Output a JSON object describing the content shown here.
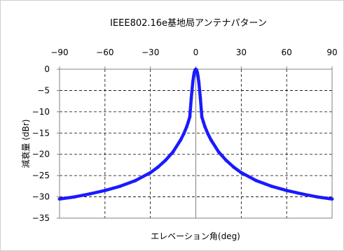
{
  "chart_data": {
    "type": "line",
    "title": "IEEE802.16e基地局アンテナパターン",
    "xlabel": "エレベーション角(deg)",
    "ylabel": "減衰量 (dBr)",
    "xlim": [
      -90,
      90
    ],
    "ylim": [
      -35,
      0
    ],
    "xticks": [
      -90,
      -60,
      -30,
      0,
      30,
      60,
      90
    ],
    "yticks": [
      0,
      -5,
      -10,
      -15,
      -20,
      -25,
      -30,
      -35
    ],
    "x_axis_position": "top",
    "grid": "dashed",
    "series": [
      {
        "color": "#1a1aff",
        "x": [
          -90,
          -80,
          -70,
          -60,
          -50,
          -40,
          -30,
          -25,
          -20,
          -15,
          -10,
          -8,
          -6,
          -5,
          -4,
          -3,
          -2,
          -1.5,
          -1,
          -0.5,
          0,
          0.5,
          1,
          1.5,
          2,
          3,
          4,
          5,
          6,
          8,
          10,
          15,
          20,
          25,
          30,
          40,
          50,
          60,
          70,
          80,
          90
        ],
        "y": [
          -30.5,
          -30.0,
          -29.3,
          -28.5,
          -27.5,
          -26.2,
          -24.3,
          -23.0,
          -21.4,
          -19.4,
          -16.6,
          -15.2,
          -13.5,
          -12.4,
          -11.2,
          -6.8,
          -3.0,
          -1.7,
          -0.75,
          -0.19,
          0,
          -0.19,
          -0.75,
          -1.7,
          -3.0,
          -6.8,
          -11.2,
          -12.4,
          -13.5,
          -15.2,
          -16.6,
          -19.4,
          -21.4,
          -23.0,
          -24.3,
          -26.2,
          -27.5,
          -28.5,
          -29.3,
          -30.0,
          -30.5
        ]
      }
    ]
  }
}
